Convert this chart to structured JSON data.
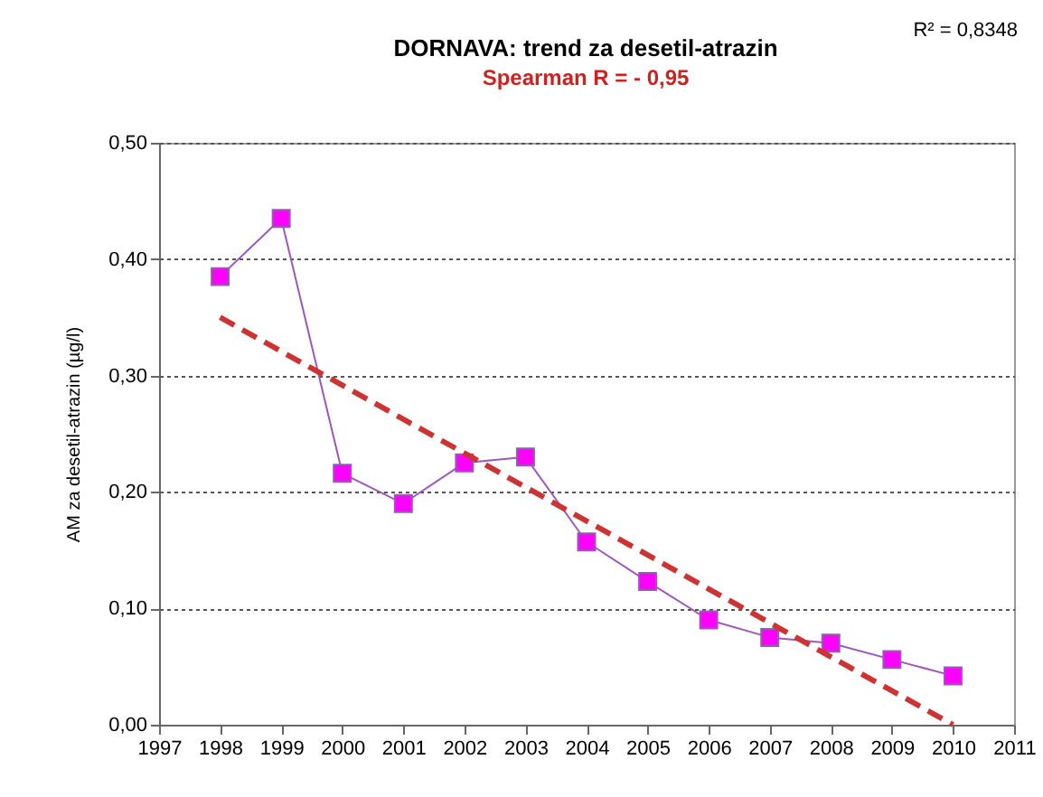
{
  "chart_data": {
    "type": "line",
    "title": "DORNAVA: trend za desetil-atrazin",
    "subtitle": "Spearman R = - 0,95",
    "ylabel": "AM za desetil-atrazin (µg/l)",
    "x": [
      1998,
      1999,
      2000,
      2001,
      2002,
      2003,
      2004,
      2005,
      2006,
      2007,
      2008,
      2009,
      2010
    ],
    "series": [
      {
        "type": "line",
        "color": "#9b59b6",
        "marker": "square",
        "line_style": "solid",
        "values": [
          0.385,
          0.435,
          0.216,
          0.19,
          0.225,
          0.23,
          0.157,
          0.123,
          0.09,
          0.075,
          0.07,
          0.056,
          0.042
        ]
      },
      {
        "type": "line",
        "color": "#cc3333",
        "marker": "none",
        "line_style": "dashed",
        "x": [
          1998,
          2010
        ],
        "values": [
          0.35,
          0.0
        ]
      }
    ],
    "xlim": [
      1997,
      2011
    ],
    "xticks": [
      1997,
      1998,
      1999,
      2000,
      2001,
      2002,
      2003,
      2004,
      2005,
      2006,
      2007,
      2008,
      2009,
      2010,
      2011
    ],
    "ylim": [
      0,
      0.5
    ],
    "yticks": [
      {
        "value": 0,
        "label": "0,00"
      },
      {
        "value": 0.1,
        "label": "0,10"
      },
      {
        "value": 0.2,
        "label": "0,20"
      },
      {
        "value": 0.3,
        "label": "0,30"
      },
      {
        "value": 0.4,
        "label": "0,40"
      },
      {
        "value": 0.5,
        "label": "0,50"
      }
    ],
    "grid": "y",
    "legend": false,
    "annotations": [
      "R² = 0,8348"
    ]
  }
}
